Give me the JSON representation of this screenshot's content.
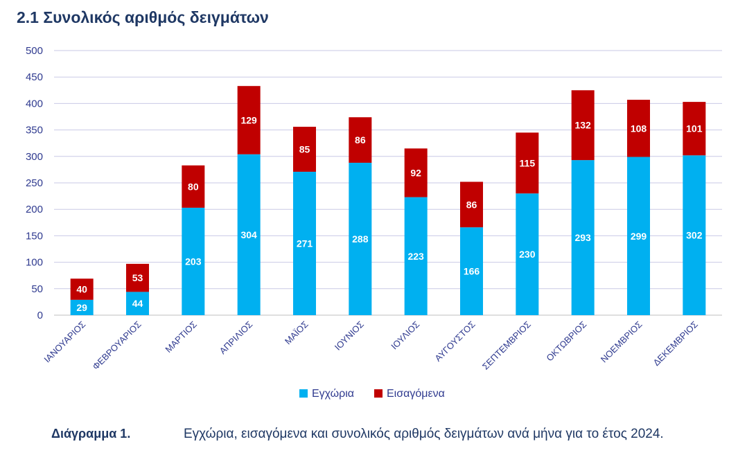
{
  "heading": "2.1 Συνολικός αριθμός δειγμάτων",
  "caption": {
    "label": "Διάγραμμα 1.",
    "text": "Εγχώρια, εισαγόμενα και συνολικός αριθμός δειγμάτων ανά μήνα για το έτος 2024."
  },
  "chart_data": {
    "type": "bar",
    "stacked": true,
    "categories": [
      "ΙΑΝΟΥΑΡΙΟΣ",
      "ΦΕΒΡΟΥΑΡΙΟΣ",
      "ΜΑΡΤΙΟΣ",
      "ΑΠΡΙΛΙΟΣ",
      "ΜΑΪΟΣ",
      "ΙΟΥΝΙΟΣ",
      "ΙΟΥΛΙΟΣ",
      "ΑΥΓΟΥΣΤΟΣ",
      "ΣΕΠΤΕΜΒΡΙΟΣ",
      "ΟΚΤΩΒΡΙΟΣ",
      "ΝΟΕΜΒΡΙΟΣ",
      "ΔΕΚΕΜΒΡΙΟΣ"
    ],
    "series": [
      {
        "name": "Εγχώρια",
        "color": "#00b0f0",
        "values": [
          29,
          44,
          203,
          304,
          271,
          288,
          223,
          166,
          230,
          293,
          299,
          302
        ]
      },
      {
        "name": "Εισαγόμενα",
        "color": "#c00000",
        "values": [
          40,
          53,
          80,
          129,
          85,
          86,
          92,
          86,
          115,
          132,
          108,
          101
        ]
      }
    ],
    "ylim": [
      0,
      500
    ],
    "yticks": [
      0,
      50,
      100,
      150,
      200,
      250,
      300,
      350,
      400,
      450,
      500
    ],
    "grid": true,
    "legend_position": "bottom"
  }
}
